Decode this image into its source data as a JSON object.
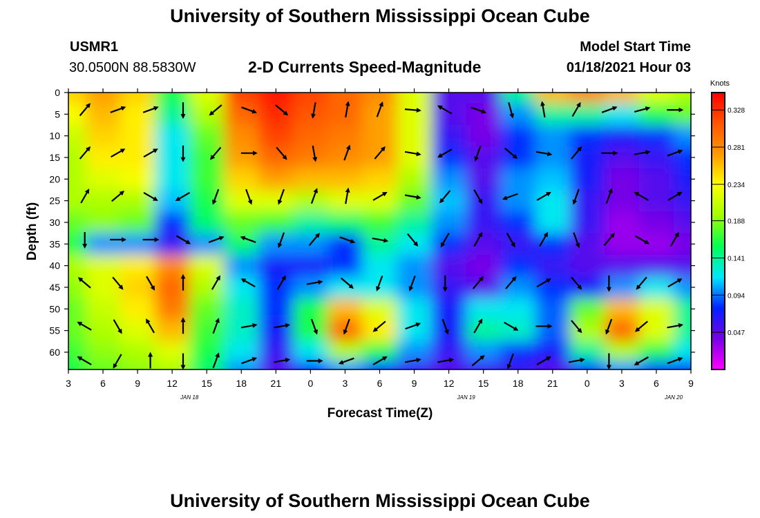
{
  "page": {
    "title_top": "University of Southern Mississippi Ocean Cube",
    "title_bottom": "University of Southern Mississippi Ocean Cube",
    "station": "USMR1",
    "coords": "30.0500N 88.5830W",
    "subtitle": "2-D Currents Speed-Magnitude",
    "model_start_label": "Model Start Time",
    "model_start_value": "01/18/2021 Hour 03"
  },
  "chart_data": {
    "type": "heatmap",
    "title": "2-D Currents Speed-Magnitude",
    "xlabel": "Forecast Time(Z)",
    "ylabel": "Depth (ft)",
    "x_tick_labels": [
      "3",
      "6",
      "9",
      "12",
      "15",
      "18",
      "21",
      "0",
      "3",
      "6",
      "9",
      "12",
      "15",
      "18",
      "21",
      "0",
      "3",
      "6",
      "9"
    ],
    "x_date_labels": [
      {
        "label": "JAN 18",
        "at_tick": 3
      },
      {
        "label": "JAN 19",
        "at_tick": 11
      },
      {
        "label": "JAN 20",
        "at_tick": 17
      }
    ],
    "y_ticks": [
      0,
      5,
      10,
      15,
      20,
      25,
      30,
      35,
      40,
      45,
      50,
      55,
      60
    ],
    "ylim": [
      0,
      64
    ],
    "y_inverted": true,
    "colorbar": {
      "label": "Knots",
      "ticks": [
        0.328,
        0.281,
        0.234,
        0.188,
        0.141,
        0.094,
        0.047
      ],
      "range": [
        0,
        0.35
      ],
      "colors": [
        "#ff00ff",
        "#7a00e6",
        "#0022ff",
        "#00e6ff",
        "#00ff55",
        "#a0ff00",
        "#ffff00",
        "#ff9900",
        "#ff5500",
        "#ff0000"
      ]
    },
    "x_index": [
      0,
      1,
      2,
      3,
      4,
      5,
      6,
      7,
      8,
      9,
      10,
      11,
      12,
      13,
      14,
      15,
      16,
      17,
      18
    ],
    "depth_levels": [
      0,
      5,
      10,
      15,
      20,
      25,
      30,
      35,
      40,
      45,
      50,
      55,
      60,
      64
    ],
    "speed_knots": [
      [
        0.25,
        0.27,
        0.25,
        0.16,
        0.22,
        0.32,
        0.34,
        0.32,
        0.3,
        0.28,
        0.22,
        0.05,
        0.05,
        0.14,
        0.26,
        0.28,
        0.26,
        0.22,
        0.2
      ],
      [
        0.23,
        0.26,
        0.24,
        0.14,
        0.2,
        0.3,
        0.33,
        0.31,
        0.3,
        0.27,
        0.22,
        0.05,
        0.04,
        0.1,
        0.14,
        0.14,
        0.12,
        0.16,
        0.18
      ],
      [
        0.21,
        0.25,
        0.24,
        0.12,
        0.18,
        0.28,
        0.32,
        0.3,
        0.29,
        0.27,
        0.22,
        0.06,
        0.04,
        0.08,
        0.1,
        0.08,
        0.07,
        0.08,
        0.1
      ],
      [
        0.2,
        0.24,
        0.24,
        0.12,
        0.17,
        0.27,
        0.3,
        0.29,
        0.28,
        0.27,
        0.22,
        0.08,
        0.05,
        0.08,
        0.1,
        0.07,
        0.05,
        0.06,
        0.08
      ],
      [
        0.2,
        0.22,
        0.23,
        0.12,
        0.17,
        0.25,
        0.27,
        0.26,
        0.26,
        0.25,
        0.2,
        0.1,
        0.05,
        0.1,
        0.11,
        0.07,
        0.04,
        0.05,
        0.07
      ],
      [
        0.2,
        0.2,
        0.2,
        0.11,
        0.16,
        0.22,
        0.22,
        0.2,
        0.22,
        0.22,
        0.18,
        0.11,
        0.06,
        0.1,
        0.12,
        0.06,
        0.04,
        0.05,
        0.06
      ],
      [
        0.18,
        0.19,
        0.18,
        0.08,
        0.15,
        0.18,
        0.17,
        0.14,
        0.15,
        0.17,
        0.14,
        0.1,
        0.06,
        0.08,
        0.12,
        0.06,
        0.03,
        0.04,
        0.05
      ],
      [
        0.16,
        0.1,
        0.1,
        0.06,
        0.1,
        0.15,
        0.1,
        0.1,
        0.08,
        0.14,
        0.12,
        0.08,
        0.05,
        0.06,
        0.08,
        0.05,
        0.03,
        0.03,
        0.04
      ],
      [
        0.2,
        0.22,
        0.24,
        0.28,
        0.22,
        0.1,
        0.07,
        0.07,
        0.08,
        0.12,
        0.1,
        0.05,
        0.04,
        0.08,
        0.06,
        0.05,
        0.05,
        0.05,
        0.05
      ],
      [
        0.19,
        0.22,
        0.25,
        0.3,
        0.2,
        0.12,
        0.08,
        0.1,
        0.12,
        0.12,
        0.1,
        0.06,
        0.05,
        0.1,
        0.08,
        0.07,
        0.1,
        0.12,
        0.1
      ],
      [
        0.18,
        0.21,
        0.24,
        0.29,
        0.18,
        0.13,
        0.08,
        0.16,
        0.26,
        0.22,
        0.12,
        0.07,
        0.12,
        0.12,
        0.09,
        0.18,
        0.26,
        0.22,
        0.14
      ],
      [
        0.18,
        0.2,
        0.22,
        0.26,
        0.17,
        0.13,
        0.07,
        0.16,
        0.3,
        0.24,
        0.12,
        0.07,
        0.14,
        0.13,
        0.09,
        0.2,
        0.3,
        0.22,
        0.14
      ],
      [
        0.17,
        0.19,
        0.2,
        0.22,
        0.16,
        0.12,
        0.06,
        0.12,
        0.2,
        0.16,
        0.1,
        0.06,
        0.1,
        0.08,
        0.07,
        0.14,
        0.2,
        0.16,
        0.12
      ],
      [
        0.16,
        0.18,
        0.19,
        0.2,
        0.15,
        0.1,
        0.05,
        0.08,
        0.1,
        0.08,
        0.06,
        0.05,
        0.06,
        0.06,
        0.05,
        0.08,
        0.1,
        0.08,
        0.08
      ]
    ],
    "vector_depths": [
      4,
      14,
      24,
      34,
      44,
      54,
      62
    ],
    "vector_directions_deg": [
      [
        40,
        70,
        70,
        180,
        230,
        110,
        130,
        190,
        10,
        20,
        95,
        300,
        110,
        165,
        350,
        30,
        70,
        75,
        90
      ],
      [
        40,
        60,
        60,
        180,
        220,
        90,
        140,
        170,
        20,
        40,
        100,
        240,
        200,
        130,
        100,
        40,
        90,
        80,
        70
      ],
      [
        30,
        50,
        120,
        240,
        200,
        160,
        200,
        20,
        10,
        60,
        100,
        220,
        150,
        250,
        60,
        200,
        20,
        300,
        60
      ],
      [
        180,
        90,
        90,
        120,
        70,
        290,
        200,
        40,
        110,
        100,
        140,
        210,
        30,
        150,
        30,
        160,
        40,
        120,
        30
      ],
      [
        310,
        140,
        150,
        0,
        30,
        300,
        30,
        80,
        130,
        200,
        200,
        180,
        40,
        40,
        60,
        140,
        180,
        220,
        60
      ],
      [
        300,
        150,
        330,
        0,
        20,
        80,
        80,
        160,
        200,
        230,
        70,
        160,
        30,
        120,
        90,
        140,
        200,
        230,
        80
      ],
      [
        300,
        210,
        0,
        180,
        20,
        70,
        80,
        90,
        250,
        60,
        80,
        80,
        50,
        200,
        60,
        80,
        180,
        240,
        70
      ]
    ]
  }
}
